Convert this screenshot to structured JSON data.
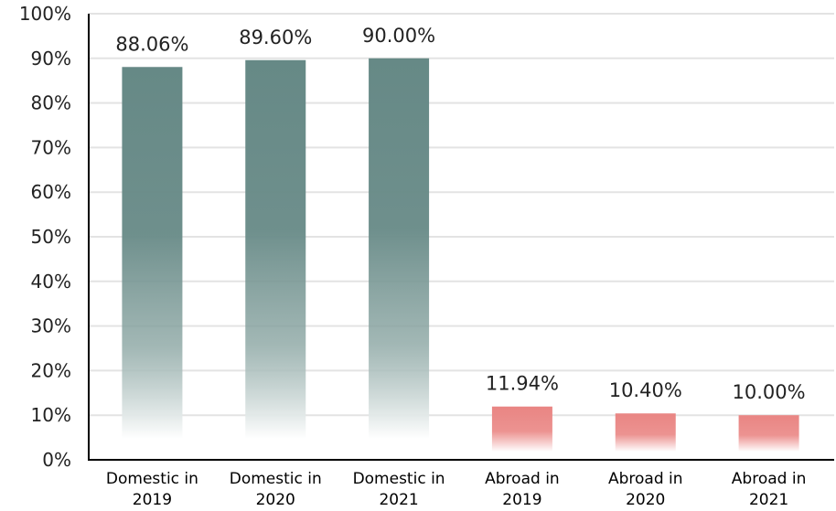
{
  "chart_data": {
    "type": "bar",
    "categories": [
      "Domestic in 2019",
      "Domestic in 2020",
      "Domestic in 2021",
      "Abroad in 2019",
      "Abroad in 2020",
      "Abroad in 2021"
    ],
    "category_lines": [
      [
        "Domestic in",
        "2019"
      ],
      [
        "Domestic in",
        "2020"
      ],
      [
        "Domestic in",
        "2021"
      ],
      [
        "Abroad in",
        "2019"
      ],
      [
        "Abroad in",
        "2020"
      ],
      [
        "Abroad in",
        "2021"
      ]
    ],
    "values": [
      88.06,
      89.6,
      90.0,
      11.94,
      10.4,
      10.0
    ],
    "data_labels": [
      "88.06%",
      "89.60%",
      "90.00%",
      "11.94%",
      "10.40%",
      "10.00%"
    ],
    "title": "",
    "xlabel": "",
    "ylabel": "",
    "ylim": [
      0,
      100
    ],
    "yticks": [
      "0%",
      "10%",
      "20%",
      "30%",
      "40%",
      "50%",
      "60%",
      "70%",
      "80%",
      "90%",
      "100%"
    ],
    "grid": true,
    "colors": {
      "domestic": "#668986",
      "abroad": "#e98583",
      "grid": "#e3e3e3",
      "axis": "#000000",
      "text": "#222222"
    }
  }
}
